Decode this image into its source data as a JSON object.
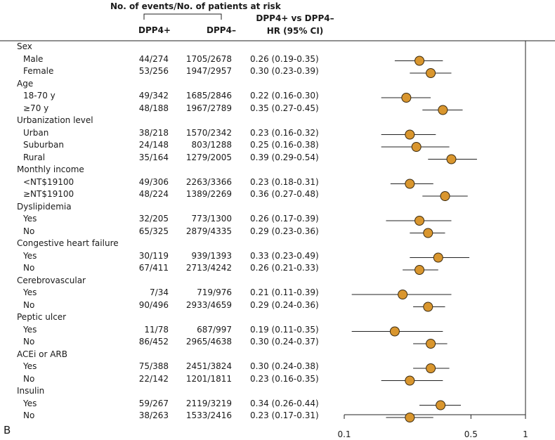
{
  "header": {
    "group_title": "No. of events/No. of patients at risk",
    "col_dpp4_pos": "DPP4+",
    "col_dpp4_neg": "DPP4–",
    "col_hr_line1": "DPP4+ vs DPP4–",
    "col_hr_line2": "HR (95% CI)"
  },
  "panel_label": "B",
  "colors": {
    "marker_fill": "#d9962e",
    "marker_stroke": "#3a2a10",
    "line": "#222222"
  },
  "chart_data": {
    "type": "forest",
    "xscale": "log",
    "xlim": [
      0.1,
      1
    ],
    "xticks": [
      0.1,
      0.5,
      1
    ],
    "xtick_labels": [
      "0.1",
      "0.5",
      "1"
    ],
    "reference_line": 1,
    "rows": [
      {
        "kind": "group",
        "label": "Sex"
      },
      {
        "kind": "item",
        "label": "Male",
        "dpp4_pos": "44/274",
        "dpp4_neg": "1705/2678",
        "hr_text": "0.26 (0.19-0.35)",
        "hr": 0.26,
        "lo": 0.19,
        "hi": 0.35
      },
      {
        "kind": "item",
        "label": "Female",
        "dpp4_pos": "53/256",
        "dpp4_neg": "1947/2957",
        "hr_text": "0.30 (0.23-0.39)",
        "hr": 0.3,
        "lo": 0.23,
        "hi": 0.39
      },
      {
        "kind": "group",
        "label": "Age"
      },
      {
        "kind": "item",
        "label": "18-70 y",
        "dpp4_pos": "49/342",
        "dpp4_neg": "1685/2846",
        "hr_text": "0.22 (0.16-0.30)",
        "hr": 0.22,
        "lo": 0.16,
        "hi": 0.3
      },
      {
        "kind": "item",
        "label": "≥70 y",
        "dpp4_pos": "48/188",
        "dpp4_neg": "1967/2789",
        "hr_text": "0.35 (0.27-0.45)",
        "hr": 0.35,
        "lo": 0.27,
        "hi": 0.45
      },
      {
        "kind": "group",
        "label": "Urbanization level"
      },
      {
        "kind": "item",
        "label": "Urban",
        "dpp4_pos": "38/218",
        "dpp4_neg": "1570/2342",
        "hr_text": "0.23 (0.16-0.32)",
        "hr": 0.23,
        "lo": 0.16,
        "hi": 0.32
      },
      {
        "kind": "item",
        "label": "Suburban",
        "dpp4_pos": "24/148",
        "dpp4_neg": "803/1288",
        "hr_text": "0.25 (0.16-0.38)",
        "hr": 0.25,
        "lo": 0.16,
        "hi": 0.38
      },
      {
        "kind": "item",
        "label": "Rural",
        "dpp4_pos": "35/164",
        "dpp4_neg": "1279/2005",
        "hr_text": "0.39 (0.29-0.54)",
        "hr": 0.39,
        "lo": 0.29,
        "hi": 0.54
      },
      {
        "kind": "group",
        "label": "Monthly income"
      },
      {
        "kind": "item",
        "label": "<NT$19100",
        "dpp4_pos": "49/306",
        "dpp4_neg": "2263/3366",
        "hr_text": "0.23 (0.18-0.31)",
        "hr": 0.23,
        "lo": 0.18,
        "hi": 0.31
      },
      {
        "kind": "item",
        "label": "≥NT$19100",
        "dpp4_pos": "48/224",
        "dpp4_neg": "1389/2269",
        "hr_text": "0.36 (0.27-0.48)",
        "hr": 0.36,
        "lo": 0.27,
        "hi": 0.48
      },
      {
        "kind": "group",
        "label": "Dyslipidemia"
      },
      {
        "kind": "item",
        "label": "Yes",
        "dpp4_pos": "32/205",
        "dpp4_neg": "773/1300",
        "hr_text": "0.26 (0.17-0.39)",
        "hr": 0.26,
        "lo": 0.17,
        "hi": 0.39
      },
      {
        "kind": "item",
        "label": "No",
        "dpp4_pos": "65/325",
        "dpp4_neg": "2879/4335",
        "hr_text": "0.29 (0.23-0.36)",
        "hr": 0.29,
        "lo": 0.23,
        "hi": 0.36
      },
      {
        "kind": "group",
        "label": "Congestive heart failure"
      },
      {
        "kind": "item",
        "label": "Yes",
        "dpp4_pos": "30/119",
        "dpp4_neg": "939/1393",
        "hr_text": "0.33 (0.23-0.49)",
        "hr": 0.33,
        "lo": 0.23,
        "hi": 0.49
      },
      {
        "kind": "item",
        "label": "No",
        "dpp4_pos": "67/411",
        "dpp4_neg": "2713/4242",
        "hr_text": "0.26 (0.21-0.33)",
        "hr": 0.26,
        "lo": 0.21,
        "hi": 0.33
      },
      {
        "kind": "group",
        "label": "Cerebrovascular"
      },
      {
        "kind": "item",
        "label": "Yes",
        "dpp4_pos": "7/34",
        "dpp4_neg": "719/976",
        "hr_text": "0.21 (0.11-0.39)",
        "hr": 0.21,
        "lo": 0.11,
        "hi": 0.39
      },
      {
        "kind": "item",
        "label": "No",
        "dpp4_pos": "90/496",
        "dpp4_neg": "2933/4659",
        "hr_text": "0.29 (0.24-0.36)",
        "hr": 0.29,
        "lo": 0.24,
        "hi": 0.36
      },
      {
        "kind": "group",
        "label": "Peptic ulcer"
      },
      {
        "kind": "item",
        "label": "Yes",
        "dpp4_pos": "11/78",
        "dpp4_neg": "687/997",
        "hr_text": "0.19 (0.11-0.35)",
        "hr": 0.19,
        "lo": 0.11,
        "hi": 0.35
      },
      {
        "kind": "item",
        "label": "No",
        "dpp4_pos": "86/452",
        "dpp4_neg": "2965/4638",
        "hr_text": "0.30 (0.24-0.37)",
        "hr": 0.3,
        "lo": 0.24,
        "hi": 0.37
      },
      {
        "kind": "group",
        "label": "ACEi or ARB"
      },
      {
        "kind": "item",
        "label": "Yes",
        "dpp4_pos": "75/388",
        "dpp4_neg": "2451/3824",
        "hr_text": "0.30 (0.24-0.38)",
        "hr": 0.3,
        "lo": 0.24,
        "hi": 0.38
      },
      {
        "kind": "item",
        "label": "No",
        "dpp4_pos": "22/142",
        "dpp4_neg": "1201/1811",
        "hr_text": "0.23 (0.16-0.35)",
        "hr": 0.23,
        "lo": 0.16,
        "hi": 0.35
      },
      {
        "kind": "group",
        "label": "Insulin"
      },
      {
        "kind": "item",
        "label": "Yes",
        "dpp4_pos": "59/267",
        "dpp4_neg": "2119/3219",
        "hr_text": "0.34 (0.26-0.44)",
        "hr": 0.34,
        "lo": 0.26,
        "hi": 0.44
      },
      {
        "kind": "item",
        "label": "No",
        "dpp4_pos": "38/263",
        "dpp4_neg": "1533/2416",
        "hr_text": "0.23 (0.17-0.31)",
        "hr": 0.23,
        "lo": 0.17,
        "hi": 0.31
      }
    ]
  }
}
